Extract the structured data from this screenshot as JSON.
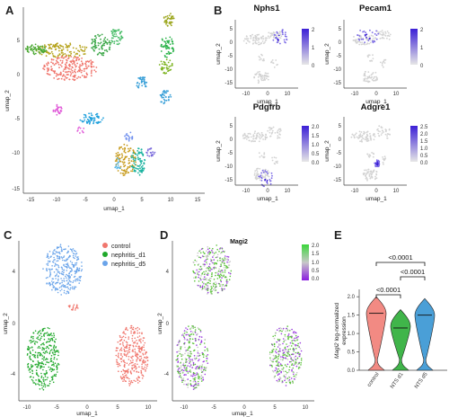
{
  "figure": {
    "panel_labels": [
      "A",
      "B",
      "C",
      "D",
      "E"
    ]
  },
  "panel_a": {
    "xlabel": "umap_1",
    "ylabel": "umap_2",
    "xticks": [
      "-15",
      "-10",
      "-5",
      "0",
      "5",
      "10",
      "15"
    ],
    "yticks": [
      "5",
      "0",
      "-5",
      "-10",
      "-15"
    ]
  },
  "panel_b": {
    "genes": [
      {
        "name": "Nphs1",
        "colorbar": [
          "2",
          "1",
          "0"
        ]
      },
      {
        "name": "Pecam1",
        "colorbar": [
          "2",
          "1",
          "0"
        ]
      },
      {
        "name": "Pdgfrb",
        "colorbar": [
          "2.0",
          "1.5",
          "1.0",
          "0.5",
          "0.0"
        ]
      },
      {
        "name": "Adgre1",
        "colorbar": [
          "2.5",
          "2.0",
          "1.5",
          "1.0",
          "0.5",
          "0.0"
        ]
      }
    ],
    "xlabel": "umap_1",
    "ylabel": "umap_2",
    "xticks": [
      "-10",
      "0",
      "10"
    ],
    "yticks": [
      "5",
      "0",
      "-5",
      "-10",
      "-15"
    ],
    "low_color": "#d9d9d9",
    "high_color": "#3b1fd6"
  },
  "panel_c": {
    "xlabel": "umap_1",
    "ylabel": "umap_2",
    "xticks": [
      "-10",
      "-5",
      "0",
      "5",
      "10"
    ],
    "yticks": [
      "4",
      "0",
      "-4"
    ],
    "legend": [
      {
        "label": "control",
        "color": "#f0766d"
      },
      {
        "label": "nephritis_d1",
        "color": "#1fa82a"
      },
      {
        "label": "nephritis_d5",
        "color": "#6aa4ea"
      }
    ]
  },
  "panel_d": {
    "title": "Magi2",
    "xlabel": "umap_1",
    "ylabel": "umap_2",
    "xticks": [
      "-10",
      "-5",
      "0",
      "5",
      "10"
    ],
    "yticks": [
      "4",
      "0",
      "-4"
    ],
    "colorbar": [
      "2.0",
      "1.5",
      "1.0",
      "0.5",
      "0.0"
    ]
  },
  "panel_e": {
    "ylabel_italic": "Magi2",
    "ylabel_rest": " log-normalized",
    "ylabel_line2": "expression",
    "yticks": [
      "2.0",
      "1.5",
      "1.0",
      "0.5",
      "0.0"
    ],
    "categories": [
      "control",
      "NTS d1",
      "NTS d5"
    ],
    "pvalues": [
      "<0.0001",
      "<0.0001",
      "<0.0001"
    ]
  },
  "chart_data": [
    {
      "type": "violin",
      "categories": [
        "control",
        "NTS d1",
        "NTS d5"
      ],
      "ylim": [
        0,
        2.2
      ],
      "series": [
        {
          "category": "control",
          "color": "#f0766d",
          "median": 1.55,
          "upper_mode": 1.55,
          "lower_mode": 0.0
        },
        {
          "category": "NTS d1",
          "color": "#1fa82a",
          "median": 1.15,
          "upper_mode": 1.2,
          "lower_mode": 0.0
        },
        {
          "category": "NTS d5",
          "color": "#2a8ed0",
          "median": 1.5,
          "upper_mode": 1.5,
          "lower_mode": 0.0
        }
      ],
      "comparisons": [
        {
          "pair": [
            "control",
            "NTS d1"
          ],
          "label": "<0.0001"
        },
        {
          "pair": [
            "NTS d1",
            "NTS d5"
          ],
          "label": "<0.0001"
        },
        {
          "pair": [
            "control",
            "NTS d5"
          ],
          "label": "<0.0001"
        }
      ]
    }
  ]
}
